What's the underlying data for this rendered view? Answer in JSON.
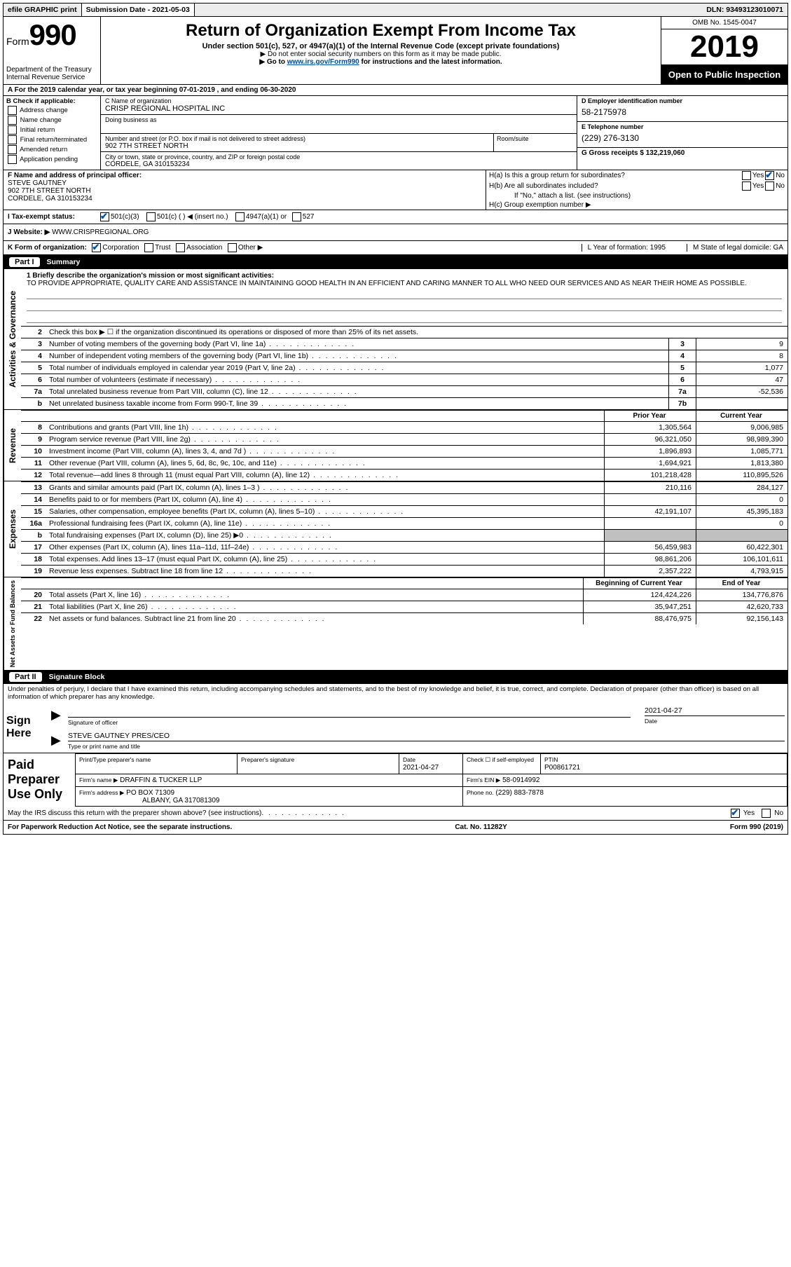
{
  "topbar": {
    "efile": "efile GRAPHIC print",
    "submission": "Submission Date - 2021-05-03",
    "dln": "DLN: 93493123010071"
  },
  "header": {
    "form_prefix": "Form",
    "form_number": "990",
    "title": "Return of Organization Exempt From Income Tax",
    "subtitle": "Under section 501(c), 527, or 4947(a)(1) of the Internal Revenue Code (except private foundations)",
    "note1": "▶ Do not enter social security numbers on this form as it may be made public.",
    "note2_pre": "▶ Go to ",
    "note2_link": "www.irs.gov/Form990",
    "note2_post": " for instructions and the latest information.",
    "dept": "Department of the Treasury\nInternal Revenue Service",
    "omb": "OMB No. 1545-0047",
    "year": "2019",
    "open": "Open to Public Inspection"
  },
  "row_a": "A For the 2019 calendar year, or tax year beginning 07-01-2019    , and ending 06-30-2020",
  "col_b": {
    "title": "B Check if applicable:",
    "opts": [
      "Address change",
      "Name change",
      "Initial return",
      "Final return/terminated",
      "Amended return",
      "Application pending"
    ]
  },
  "col_c": {
    "name_label": "C Name of organization",
    "name": "CRISP REGIONAL HOSPITAL INC",
    "dba_label": "Doing business as",
    "dba": "",
    "addr_label": "Number and street (or P.O. box if mail is not delivered to street address)",
    "addr": "902 7TH STREET NORTH",
    "room_label": "Room/suite",
    "city_label": "City or town, state or province, country, and ZIP or foreign postal code",
    "city": "CORDELE, GA  310153234"
  },
  "col_d": {
    "d_label": "D Employer identification number",
    "d_val": "58-2175978",
    "e_label": "E Telephone number",
    "e_val": "(229) 276-3130",
    "g_label": "G Gross receipts $ 132,219,060"
  },
  "col_f": {
    "label": "F  Name and address of principal officer:",
    "name": "STEVE GAUTNEY",
    "addr1": "902 7TH STREET NORTH",
    "addr2": "CORDELE, GA  310153234"
  },
  "col_h": {
    "ha": "H(a)  Is this a group return for subordinates?",
    "hb": "H(b)  Are all subordinates included?",
    "hb_note": "If \"No,\" attach a list. (see instructions)",
    "hc": "H(c)  Group exemption number ▶"
  },
  "row_i": {
    "label": "I   Tax-exempt status:",
    "o1": "501(c)(3)",
    "o2": "501(c) (   ) ◀ (insert no.)",
    "o3": "4947(a)(1) or",
    "o4": "527"
  },
  "row_j": {
    "label": "J   Website: ▶",
    "val": "WWW.CRISPREGIONAL.ORG"
  },
  "row_k": {
    "label": "K Form of organization:",
    "opts": [
      "Corporation",
      "Trust",
      "Association",
      "Other ▶"
    ],
    "l": "L Year of formation: 1995",
    "m": "M State of legal domicile: GA"
  },
  "part1": {
    "num": "Part I",
    "title": "Summary"
  },
  "mission": {
    "q": "1  Briefly describe the organization's mission or most significant activities:",
    "text": "TO PROVIDE APPROPRIATE, QUALITY CARE AND ASSISTANCE IN MAINTAINING GOOD HEALTH IN AN EFFICIENT AND CARING MANNER TO ALL WHO NEED OUR SERVICES AND AS NEAR THEIR HOME AS POSSIBLE."
  },
  "activities": {
    "l2": "Check this box ▶ ☐  if the organization discontinued its operations or disposed of more than 25% of its net assets.",
    "rows": [
      {
        "n": "3",
        "d": "Number of voting members of the governing body (Part VI, line 1a)",
        "b": "3",
        "v": "9"
      },
      {
        "n": "4",
        "d": "Number of independent voting members of the governing body (Part VI, line 1b)",
        "b": "4",
        "v": "8"
      },
      {
        "n": "5",
        "d": "Total number of individuals employed in calendar year 2019 (Part V, line 2a)",
        "b": "5",
        "v": "1,077"
      },
      {
        "n": "6",
        "d": "Total number of volunteers (estimate if necessary)",
        "b": "6",
        "v": "47"
      },
      {
        "n": "7a",
        "d": "Total unrelated business revenue from Part VIII, column (C), line 12",
        "b": "7a",
        "v": "-52,536"
      },
      {
        "n": "b",
        "d": "Net unrelated business taxable income from Form 990-T, line 39",
        "b": "7b",
        "v": ""
      }
    ]
  },
  "revexp": {
    "hdr_prior": "Prior Year",
    "hdr_curr": "Current Year",
    "revenue": [
      {
        "n": "8",
        "d": "Contributions and grants (Part VIII, line 1h)",
        "p": "1,305,564",
        "c": "9,006,985"
      },
      {
        "n": "9",
        "d": "Program service revenue (Part VIII, line 2g)",
        "p": "96,321,050",
        "c": "98,989,390"
      },
      {
        "n": "10",
        "d": "Investment income (Part VIII, column (A), lines 3, 4, and 7d )",
        "p": "1,896,893",
        "c": "1,085,771"
      },
      {
        "n": "11",
        "d": "Other revenue (Part VIII, column (A), lines 5, 6d, 8c, 9c, 10c, and 11e)",
        "p": "1,694,921",
        "c": "1,813,380"
      },
      {
        "n": "12",
        "d": "Total revenue—add lines 8 through 11 (must equal Part VIII, column (A), line 12)",
        "p": "101,218,428",
        "c": "110,895,526"
      }
    ],
    "expenses": [
      {
        "n": "13",
        "d": "Grants and similar amounts paid (Part IX, column (A), lines 1–3 )",
        "p": "210,116",
        "c": "284,127"
      },
      {
        "n": "14",
        "d": "Benefits paid to or for members (Part IX, column (A), line 4)",
        "p": "",
        "c": "0"
      },
      {
        "n": "15",
        "d": "Salaries, other compensation, employee benefits (Part IX, column (A), lines 5–10)",
        "p": "42,191,107",
        "c": "45,395,183"
      },
      {
        "n": "16a",
        "d": "Professional fundraising fees (Part IX, column (A), line 11e)",
        "p": "",
        "c": "0"
      },
      {
        "n": "b",
        "d": "Total fundraising expenses (Part IX, column (D), line 25) ▶0",
        "p": "GRAY",
        "c": "GRAY"
      },
      {
        "n": "17",
        "d": "Other expenses (Part IX, column (A), lines 11a–11d, 11f–24e)",
        "p": "56,459,983",
        "c": "60,422,301"
      },
      {
        "n": "18",
        "d": "Total expenses. Add lines 13–17 (must equal Part IX, column (A), line 25)",
        "p": "98,861,206",
        "c": "106,101,611"
      },
      {
        "n": "19",
        "d": "Revenue less expenses. Subtract line 18 from line 12",
        "p": "2,357,222",
        "c": "4,793,915"
      }
    ],
    "hdr_beg": "Beginning of Current Year",
    "hdr_end": "End of Year",
    "netassets": [
      {
        "n": "20",
        "d": "Total assets (Part X, line 16)",
        "p": "124,424,226",
        "c": "134,776,876"
      },
      {
        "n": "21",
        "d": "Total liabilities (Part X, line 26)",
        "p": "35,947,251",
        "c": "42,620,733"
      },
      {
        "n": "22",
        "d": "Net assets or fund balances. Subtract line 21 from line 20",
        "p": "88,476,975",
        "c": "92,156,143"
      }
    ]
  },
  "vlabels": {
    "act": "Activities & Governance",
    "rev": "Revenue",
    "exp": "Expenses",
    "net": "Net Assets or Fund Balances"
  },
  "part2": {
    "num": "Part II",
    "title": "Signature Block"
  },
  "sig": {
    "penalty": "Under penalties of perjury, I declare that I have examined this return, including accompanying schedules and statements, and to the best of my knowledge and belief, it is true, correct, and complete. Declaration of preparer (other than officer) is based on all information of which preparer has any knowledge.",
    "sign_here": "Sign Here",
    "sig_officer": "Signature of officer",
    "date": "2021-04-27",
    "date_label": "Date",
    "name": "STEVE GAUTNEY PRES/CEO",
    "name_label": "Type or print name and title"
  },
  "prep": {
    "label": "Paid Preparer Use Only",
    "h1": "Print/Type preparer's name",
    "h2": "Preparer's signature",
    "h3": "Date",
    "h3v": "2021-04-27",
    "h4": "Check ☐ if self-employed",
    "h5": "PTIN",
    "h5v": "P00861721",
    "firm_label": "Firm's name     ▶",
    "firm": "DRAFFIN & TUCKER LLP",
    "ein_label": "Firm's EIN ▶",
    "ein": "58-0914992",
    "addr_label": "Firm's address ▶",
    "addr1": "PO BOX 71309",
    "addr2": "ALBANY, GA  317081309",
    "phone_label": "Phone no.",
    "phone": "(229) 883-7878",
    "discuss": "May the IRS discuss this return with the preparer shown above? (see instructions)"
  },
  "footer": {
    "left": "For Paperwork Reduction Act Notice, see the separate instructions.",
    "mid": "Cat. No. 11282Y",
    "right": "Form 990 (2019)"
  }
}
